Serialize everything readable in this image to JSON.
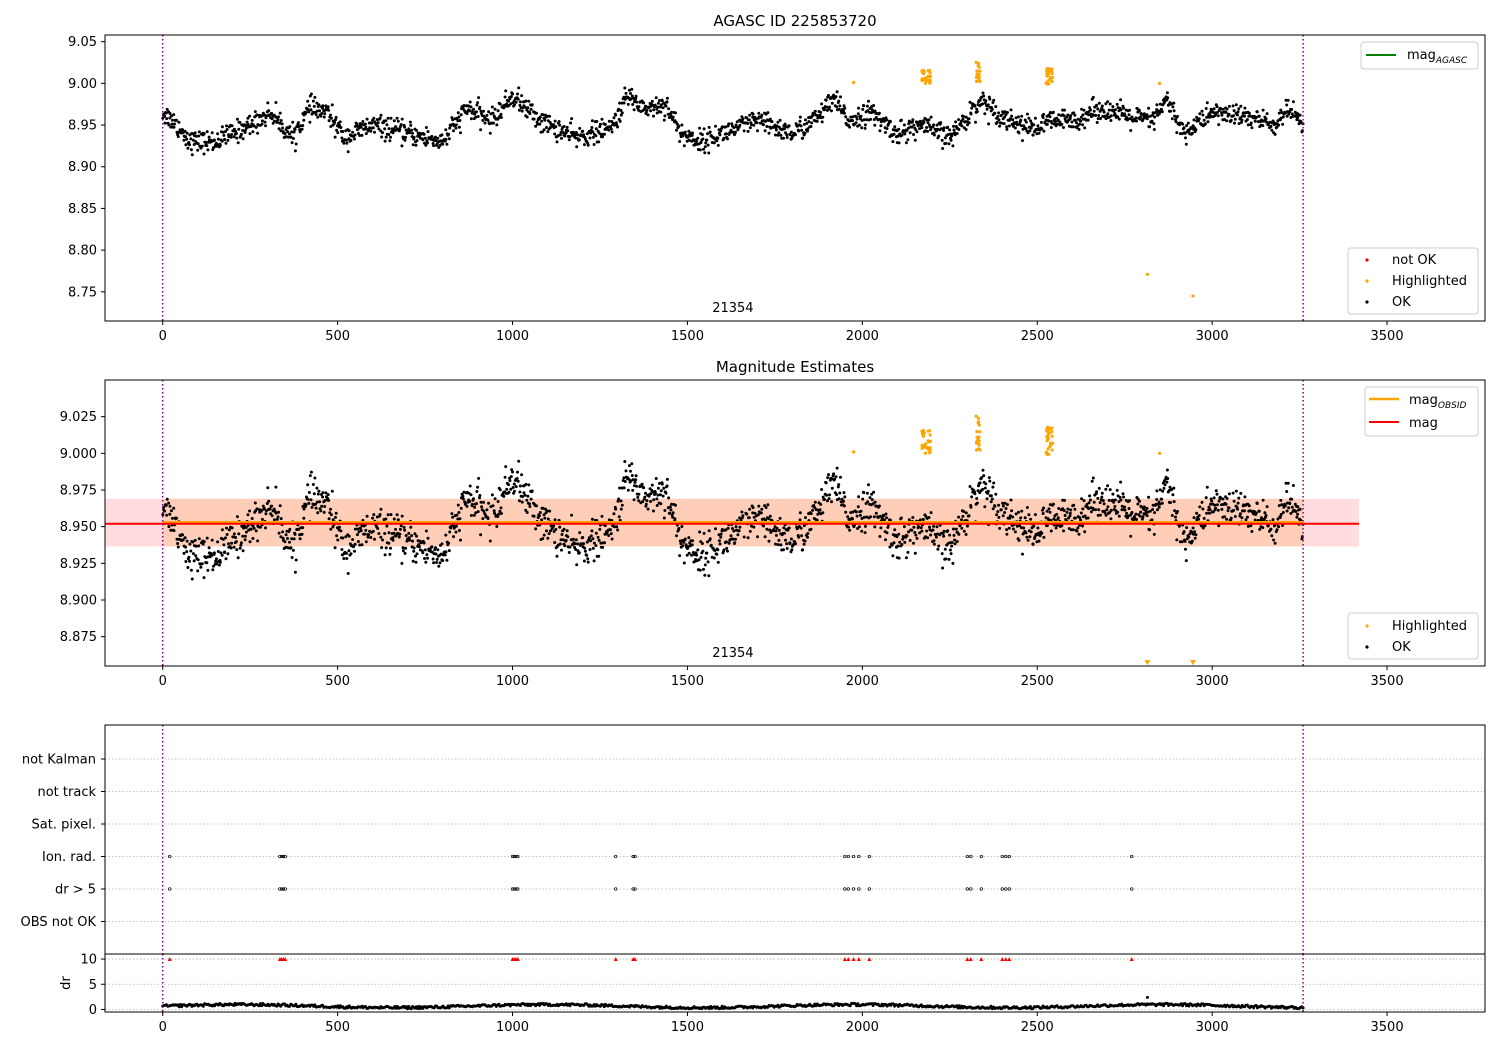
{
  "chart_data": [
    {
      "type": "scatter",
      "title": "AGASC ID 225853720",
      "xlabel": "",
      "ylabel": "",
      "xlim": [
        -165,
        3780
      ],
      "ylim": [
        8.715,
        9.058
      ],
      "xticks": [
        0,
        500,
        1000,
        1500,
        2000,
        2500,
        3000,
        3500
      ],
      "yticks": [
        8.75,
        8.8,
        8.85,
        8.9,
        8.95,
        9.0,
        9.05
      ],
      "ytick_labels": [
        "8.75",
        "8.80",
        "8.85",
        "8.90",
        "8.95",
        "9.00",
        "9.05"
      ],
      "vlines": [
        0,
        3260
      ],
      "vline_color": "#800080",
      "obsid_label": {
        "text": "21354",
        "x": 1630
      },
      "legend_top": [
        {
          "label": "mag",
          "sub": "AGASC",
          "color": "#008000",
          "kind": "line"
        }
      ],
      "legend_bottom": [
        {
          "label": "not OK",
          "color": "#ff0000",
          "kind": "dot"
        },
        {
          "label": "Highlighted",
          "color": "#ffa500",
          "kind": "dot"
        },
        {
          "label": "OK",
          "color": "#000000",
          "kind": "dot"
        }
      ],
      "series": [
        {
          "name": "OK",
          "color": "#000000",
          "n": 2000,
          "x_range": [
            0,
            3260
          ],
          "profile_x": [
            0,
            30,
            80,
            150,
            250,
            310,
            370,
            420,
            470,
            520,
            600,
            700,
            800,
            870,
            940,
            1000,
            1080,
            1180,
            1280,
            1330,
            1380,
            1440,
            1480,
            1540,
            1600,
            1700,
            1800,
            1860,
            1920,
            1960,
            2020,
            2100,
            2170,
            2250,
            2310,
            2340,
            2400,
            2490,
            2540,
            2600,
            2680,
            2760,
            2830,
            2870,
            2920,
            3000,
            3100,
            3180,
            3220,
            3260
          ],
          "profile_y": [
            8.965,
            8.955,
            8.93,
            8.93,
            8.95,
            8.965,
            8.935,
            8.97,
            8.965,
            8.935,
            8.95,
            8.94,
            8.93,
            8.97,
            8.955,
            8.985,
            8.955,
            8.935,
            8.945,
            8.985,
            8.97,
            8.975,
            8.94,
            8.93,
            8.94,
            8.955,
            8.94,
            8.955,
            8.98,
            8.955,
            8.965,
            8.94,
            8.95,
            8.935,
            8.965,
            8.98,
            8.96,
            8.945,
            8.955,
            8.955,
            8.97,
            8.96,
            8.955,
            8.98,
            8.94,
            8.965,
            8.96,
            8.95,
            8.97,
            8.945
          ],
          "noise": 0.0065
        },
        {
          "name": "Highlighted",
          "color": "#ffa500",
          "clusters": [
            {
              "x": [
                2170,
                2195
              ],
              "y": [
                9.0,
                9.016
              ],
              "n": 28
            },
            {
              "x": [
                2325,
                2337
              ],
              "y": [
                9.002,
                9.027
              ],
              "n": 18
            },
            {
              "x": [
                2525,
                2545
              ],
              "y": [
                8.998,
                9.018
              ],
              "n": 30
            }
          ],
          "points": [
            [
              1975,
              9.001
            ],
            [
              2850,
              9.0
            ],
            [
              2815,
              8.771
            ],
            [
              2945,
              8.745
            ]
          ]
        }
      ]
    },
    {
      "type": "scatter",
      "title": "Magnitude Estimates",
      "xlabel": "",
      "ylabel": "",
      "xlim": [
        -165,
        3780
      ],
      "ylim": [
        8.855,
        9.05
      ],
      "xticks": [
        0,
        500,
        1000,
        1500,
        2000,
        2500,
        3000,
        3500
      ],
      "yticks": [
        8.875,
        8.9,
        8.925,
        8.95,
        8.975,
        9.0,
        9.025
      ],
      "ytick_labels": [
        "8.875",
        "8.900",
        "8.925",
        "8.950",
        "8.975",
        "9.000",
        "9.025"
      ],
      "vlines": [
        0,
        3260
      ],
      "vline_color": "#800080",
      "obsid_label": {
        "text": "21354",
        "x": 1630
      },
      "mag_line": {
        "value": 8.952,
        "x": [
          -165,
          3420
        ],
        "color": "#ff0000",
        "band": [
          8.9365,
          8.969
        ],
        "band_color": "#ffd0d6"
      },
      "mag_obsid": {
        "value": 8.953,
        "x": [
          0,
          3260
        ],
        "color": "#ffa500",
        "band": [
          8.9365,
          8.969
        ],
        "band_color": "#ffc8a8"
      },
      "legend_top": [
        {
          "label": "mag",
          "sub": "OBSID",
          "color": "#ffa500",
          "kind": "line"
        },
        {
          "label": "mag",
          "sub": "",
          "color": "#ff0000",
          "kind": "line"
        }
      ],
      "legend_bottom": [
        {
          "label": "Highlighted",
          "color": "#ffa500",
          "kind": "dot"
        },
        {
          "label": "OK",
          "color": "#000000",
          "kind": "dot"
        }
      ],
      "offscale_markers": [
        [
          2815,
          8.857
        ],
        [
          2945,
          8.857
        ]
      ]
    },
    {
      "type": "scatter",
      "title": "",
      "xlim": [
        -165,
        3780
      ],
      "xticks": [
        0,
        500,
        1000,
        1500,
        2000,
        2500,
        3000,
        3500
      ],
      "flag_rows": [
        "not Kalman",
        "not track",
        "Sat. pixel.",
        "Ion. rad.",
        "dr > 5",
        "OBS not OK"
      ],
      "flag_times": [
        20,
        335,
        340,
        345,
        350,
        1000,
        1005,
        1010,
        1015,
        1295,
        1345,
        1350,
        1950,
        1960,
        1975,
        1990,
        2020,
        2300,
        2310,
        2340,
        2400,
        2410,
        2420,
        2770
      ],
      "flagged_rows": [
        "Ion. rad.",
        "dr > 5"
      ],
      "dr_ylabel": "dr",
      "dr_ylim": [
        -0.5,
        11
      ],
      "dr_yticks": [
        0,
        5,
        10
      ],
      "dr_values_range": [
        0.2,
        1.2
      ],
      "dr_clipped_value": 10,
      "dr_extra_point": [
        2815,
        2.4
      ]
    }
  ]
}
